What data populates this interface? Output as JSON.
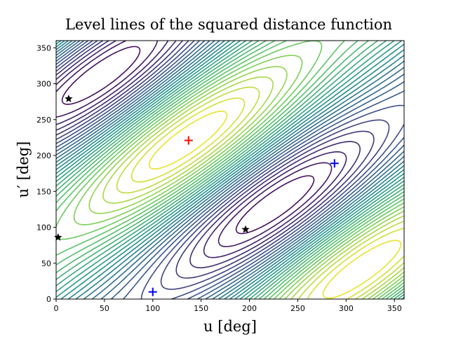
{
  "chart_data": {
    "type": "contour",
    "title": "Level lines of the squared distance function",
    "xlabel": "u [deg]",
    "ylabel": "u′ [deg]",
    "xlim": [
      0,
      360
    ],
    "ylim": [
      0,
      360
    ],
    "xticks": [
      0,
      50,
      100,
      150,
      200,
      250,
      300,
      350
    ],
    "yticks": [
      0,
      50,
      100,
      150,
      200,
      250,
      300,
      350
    ],
    "colormap": "viridis",
    "markers": [
      {
        "marker": "plus",
        "color": "#ff0000",
        "x": 137,
        "y": 221
      },
      {
        "marker": "plus",
        "color": "#0000ff",
        "x": 288,
        "y": 189
      },
      {
        "marker": "plus",
        "color": "#0000ff",
        "x": 100,
        "y": 10
      },
      {
        "marker": "star",
        "color": "#000000",
        "x": 13,
        "y": 279
      },
      {
        "marker": "star",
        "color": "#000000",
        "x": 2,
        "y": 86
      },
      {
        "marker": "star",
        "color": "#000000",
        "x": 196,
        "y": 97
      }
    ]
  }
}
